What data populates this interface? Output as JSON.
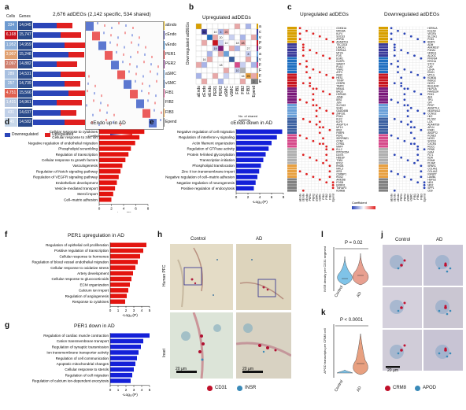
{
  "panels": {
    "a": "a",
    "b": "b",
    "c": "c",
    "d": "d",
    "e": "e",
    "f": "f",
    "g": "g",
    "h": "h",
    "i": "i",
    "j": "j",
    "k": "k",
    "l": "l"
  },
  "panel_a": {
    "header_cells": "Cells",
    "header_genes": "Genes",
    "summary": "2,676 adDEGs (2,142 specific, 534 shared)",
    "rows": [
      {
        "cells": "334",
        "genes": "14,045",
        "label": "aEndo",
        "color": "#e0b000"
      },
      {
        "cells": "6,168",
        "genes": "15,747",
        "label": "cEndo",
        "color": "#3a3a9a"
      },
      {
        "cells": "1,952",
        "genes": "14,959",
        "label": "vEndo",
        "color": "#1f6fc0"
      },
      {
        "cells": "3,907",
        "genes": "15,248",
        "label": "PER1",
        "color": "#c8141e"
      },
      {
        "cells": "2,097",
        "genes": "14,882",
        "label": "PER2",
        "color": "#7a1a7a"
      },
      {
        "cells": "289",
        "genes": "14,531",
        "label": "aSMC",
        "color": "#6aa0d8"
      },
      {
        "cells": "257",
        "genes": "14,739",
        "label": "vSMC",
        "color": "#3a5fa0"
      },
      {
        "cells": "4,751",
        "genes": "15,566",
        "label": "FIB1",
        "color": "#d64a8a"
      },
      {
        "cells": "1,431",
        "genes": "14,961",
        "label": "FIB2",
        "color": "#b0b0b0"
      },
      {
        "cells": "431",
        "genes": "14,637",
        "label": "FIB3",
        "color": "#e8a040"
      },
      {
        "cells": "245",
        "genes": "14,582",
        "label": "Epend",
        "color": "#808080"
      }
    ],
    "legend_down": "Downregulated",
    "legend_up": "Upregulated",
    "legend_coef": "Coefficient",
    "colors": {
      "down": "#2b45b8",
      "up": "#e02020"
    }
  },
  "panel_b": {
    "title": "Upregulated adDEGs",
    "ylabel": "Downregulated adDEGs",
    "rows": [
      "aEndo",
      "cEndo",
      "vEndo",
      "PER1",
      "PER2",
      "aSMC",
      "vSMC",
      "FIB1",
      "FIB2",
      "FIB3",
      "Epend"
    ],
    "cols": [
      "aEndo",
      "cEndo",
      "vEndo",
      "PER1",
      "PER2",
      "aSMC",
      "vSMC",
      "FIB1",
      "FIB2",
      "FIB3",
      "Epend"
    ],
    "numbers": [
      "52",
      "10",
      "4",
      "20",
      "20",
      "10",
      "19",
      "18",
      "27",
      "8",
      "48",
      "16",
      "18",
      "10",
      "16",
      "25",
      "2"
    ],
    "legend": "No. of shared adDEGs"
  },
  "panel_c": {
    "title_up": "Upregulated adDEGs",
    "title_down": "Downregulated adDEGs",
    "genes_up": [
      "CDKN1A",
      "NFKBIA",
      "KLF4",
      "SOCS3",
      "ZFP36",
      "ADAMTS1",
      "TSC22D3",
      "LIMCH1",
      "HSPA1A",
      "MT2A",
      "FOS",
      "EGR1",
      "DUSP1",
      "SMAD7",
      "PLAU",
      "VWA1",
      "ATF3",
      "INSR",
      "HES1",
      "TXNIP",
      "CEBPD",
      "TIMP3",
      "NR4A1",
      "BAG3",
      "HSPA1B",
      "JUNB",
      "IER2",
      "JUN",
      "SLC2A3",
      "SGK1",
      "GADD45B",
      "ZNF331",
      "PDK4",
      "KLF2",
      "KLF9",
      "ANGPTL4",
      "MT1X",
      "IRS2",
      "FKBP5",
      "PER1",
      "SERPINE1",
      "CCN2",
      "CYR61",
      "MAFF",
      "ELL2",
      "PPP1R15A",
      "DDIT4",
      "HBEGF",
      "TOB1",
      "BTG2",
      "RHOB",
      "NFIL3",
      "IER3",
      "CSRNP1",
      "RGS2",
      "ARID5B",
      "FOSB",
      "ERRFI1",
      "TNFAIP3",
      "KDM6B"
    ],
    "genes_down": [
      "HSPA1A",
      "EGLN3",
      "VEGFA",
      "SLC2A1",
      "PGK1",
      "BNIP3",
      "ADM",
      "ANKRD37",
      "P4HA1",
      "NDRG1",
      "ALDOC",
      "PFKFB4",
      "ERO1A",
      "STC2",
      "CA9",
      "LDHA",
      "ENO1",
      "MT1G",
      "KDM3A",
      "INSIG2",
      "DDIT4",
      "BHLHE40",
      "HILPDA",
      "FAM162A",
      "PDK1",
      "AK4",
      "TPI1",
      "GPI",
      "PFKP",
      "ANGPTL4",
      "NDUFA4L2",
      "CCNG2",
      "HK2",
      "PLOD2",
      "LOX",
      "ADAMTS9",
      "APLN",
      "ESM1",
      "ANGPT2",
      "KCNE3",
      "NOS3",
      "SOX18",
      "CXCR4",
      "RGCC",
      "PRND",
      "GJA4",
      "FLT1",
      "KDR",
      "ESAM",
      "PLVAP",
      "SPARC",
      "COL4A1",
      "COL4A2",
      "IGFBP7",
      "LAMB1",
      "HSPG2",
      "NID1",
      "NID2",
      "SPP1",
      "CD9"
    ],
    "legend": "Coefficient",
    "xcols": [
      "aEndo",
      "cEndo",
      "vEndo",
      "PER1",
      "PER2",
      "aSMC",
      "vSMC",
      "FIB1",
      "FIB2",
      "FIB3",
      "Epend"
    ],
    "bar_colors": [
      "#d8a000",
      "#3a3a9a",
      "#1f6fc0",
      "#c8141e",
      "#7a1a7a",
      "#6aa0d8",
      "#3a5fa0",
      "#d64a8a",
      "#b0b0b0",
      "#e8a040",
      "#808080"
    ]
  },
  "panel_d": {
    "title": "cEndo up in AD",
    "xlabel": "-Log₁₀(P)",
    "bar_color": "#e3140f",
    "ticks": [
      "0",
      "2",
      "4",
      "6",
      "8"
    ],
    "items": [
      {
        "label": "Cellular response to cytokines",
        "value": 7.4
      },
      {
        "label": "Cellular response to zinc ion",
        "value": 6.6
      },
      {
        "label": "Negative regulation of endothelial migration",
        "value": 5.9
      },
      {
        "label": "Phospholipid scrambling",
        "value": 5.2
      },
      {
        "label": "Regulation of transcription",
        "value": 4.8
      },
      {
        "label": "Cellular response to growth factors",
        "value": 4.3
      },
      {
        "label": "Vasculogenesis",
        "value": 3.8
      },
      {
        "label": "Regulation of Notch signaling pathway",
        "value": 3.5
      },
      {
        "label": "Regulation of VEGFR signaling pathway",
        "value": 3.2
      },
      {
        "label": "Endothelium development",
        "value": 2.9
      },
      {
        "label": "Vesicle-mediated transport",
        "value": 2.6
      },
      {
        "label": "Sterol import",
        "value": 2.3
      },
      {
        "label": "Cell–matrix adhesion",
        "value": 2.0
      }
    ]
  },
  "panel_e": {
    "title": "cEndo down in AD",
    "xlabel": "-Log₁₀(P)",
    "bar_color": "#1420d8",
    "ticks": [
      "0",
      "2",
      "4",
      "6",
      "8"
    ],
    "items": [
      {
        "label": "Negative regulation of cell migration",
        "value": 7.8
      },
      {
        "label": "Regulation of interferon-γ signaling",
        "value": 6.9
      },
      {
        "label": "Actin filament organization",
        "value": 6.0
      },
      {
        "label": "Regulation of GTPase activity",
        "value": 5.5
      },
      {
        "label": "Protein N-linked glycosylation",
        "value": 5.0
      },
      {
        "label": "Transcription initiation",
        "value": 4.6
      },
      {
        "label": "Phospholipid translocation",
        "value": 4.2
      },
      {
        "label": "Zinc II ion transmembrane import",
        "value": 3.9
      },
      {
        "label": "Negative regulation of cell–matrix adhesion",
        "value": 3.6
      },
      {
        "label": "Negative regulation of neurogenesis",
        "value": 3.3
      },
      {
        "label": "Positive regulation of endocytosis",
        "value": 3.0
      }
    ]
  },
  "panel_f": {
    "title": "PER1 upregulation in AD",
    "xlabel": "-Log₁₀(P)",
    "bar_color": "#e3140f",
    "ticks": [
      "0",
      "1",
      "2",
      "3",
      "4",
      "5"
    ],
    "items": [
      {
        "label": "Regulation of epithelial cell proliferation",
        "value": 4.6
      },
      {
        "label": "Positive regulation of transcription",
        "value": 4.2
      },
      {
        "label": "Cellular response to hormones",
        "value": 3.8
      },
      {
        "label": "Regulation of blood vessel endothelial migration",
        "value": 3.5
      },
      {
        "label": "Cellular response to oxidative stress",
        "value": 3.2
      },
      {
        "label": "Artery development",
        "value": 2.9
      },
      {
        "label": "Cellular response to glucocorticoids",
        "value": 2.7
      },
      {
        "label": "ECM organization",
        "value": 2.5
      },
      {
        "label": "Calcium ion import",
        "value": 2.3
      },
      {
        "label": "Regulation of angiogenesis",
        "value": 2.1
      },
      {
        "label": "Response to cytokines",
        "value": 1.9
      }
    ]
  },
  "panel_g": {
    "title": "PER1 down in AD",
    "xlabel": "-Log₁₀(P)",
    "bar_color": "#1420d8",
    "ticks": [
      "0",
      "1",
      "2",
      "3",
      "4",
      "5"
    ],
    "items": [
      {
        "label": "Regulation of cardiac muscle contraction",
        "value": 5.0
      },
      {
        "label": "Cation transmembrane transport",
        "value": 4.2
      },
      {
        "label": "Regulation of synaptic transmission",
        "value": 3.9
      },
      {
        "label": "Ion transmembrane transporter activity",
        "value": 3.6
      },
      {
        "label": "Regulation of cell communication",
        "value": 3.4
      },
      {
        "label": "Apoptotic mitochondrial changes",
        "value": 3.2
      },
      {
        "label": "Cellular response to sterols",
        "value": 3.0
      },
      {
        "label": "Regulation of cell migration",
        "value": 2.8
      },
      {
        "label": "Regulation of calcium ion-dependent exocytosis",
        "value": 2.6
      }
    ]
  },
  "panel_h": {
    "col_control": "Control",
    "col_ad": "AD",
    "row_human": "Human PFC",
    "row_inset": "Inset",
    "scale": "20 μm",
    "legend_cd31": "CD31",
    "legend_insr": "INSR",
    "colors": {
      "cd31": "#c0102a",
      "insr": "#3a8ab8"
    }
  },
  "panel_l": {
    "pvalue": "P = 0.02",
    "ylabel": "INSR density per CD31 segment",
    "xcats": [
      "Control",
      "AD"
    ]
  },
  "panel_k": {
    "pvalue": "P < 0.0001",
    "ylabel": "APOD transcripts per CRM8 cell",
    "xcats": [
      "Control",
      "AD"
    ]
  },
  "panel_j": {
    "col_control": "Control",
    "col_ad": "AD",
    "scale": "20 μm",
    "legend_crm8": "CRM8",
    "legend_apod": "APOD",
    "colors": {
      "crm8": "#c0102a",
      "apod": "#3a8ab8"
    }
  }
}
